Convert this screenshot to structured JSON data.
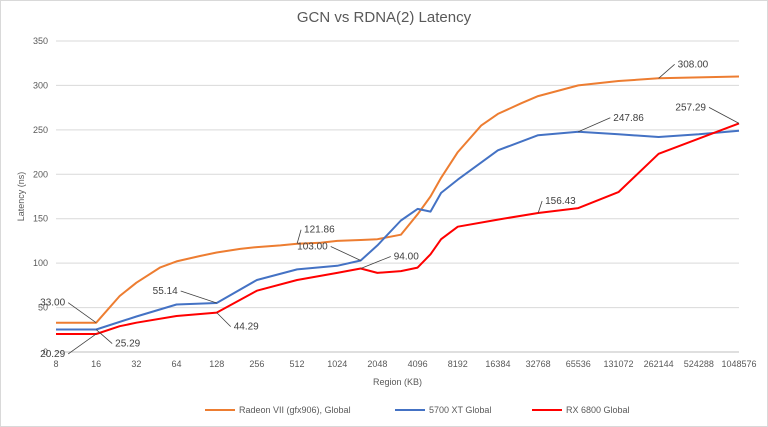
{
  "chart_data": {
    "type": "line",
    "title": "GCN vs RDNA(2) Latency",
    "xlabel": "Region (KB)",
    "ylabel": "Latency (ns)",
    "ylim": [
      0,
      350
    ],
    "yticks": [
      0,
      50,
      100,
      150,
      200,
      250,
      300,
      350
    ],
    "xticks": [
      "8",
      "16",
      "32",
      "64",
      "128",
      "256",
      "512",
      "1024",
      "2048",
      "4096",
      "8192",
      "16384",
      "32768",
      "65536",
      "131072",
      "262144",
      "524288",
      "1048576"
    ],
    "x_scale": "log2",
    "grid": "horizontal",
    "legend_position": "bottom",
    "series": [
      {
        "name": "Radeon VII (gfx906), Global",
        "color": "#ED7D31",
        "x": [
          8,
          12,
          16,
          24,
          32,
          48,
          64,
          96,
          128,
          192,
          256,
          384,
          512,
          768,
          1024,
          1536,
          2048,
          3072,
          4096,
          5120,
          6144,
          8192,
          12288,
          16384,
          24576,
          32768,
          65536,
          131072,
          262144,
          524288,
          1048576
        ],
        "y": [
          33,
          33,
          33,
          63,
          78,
          95,
          102,
          108,
          112,
          116,
          118,
          120,
          121.86,
          123,
          125,
          126,
          127,
          132,
          155,
          175,
          196,
          225,
          255,
          268,
          280,
          288,
          300,
          305,
          308,
          309,
          310
        ]
      },
      {
        "name": "5700 XT Global",
        "color": "#4472C4",
        "x": [
          8,
          12,
          16,
          32,
          64,
          128,
          256,
          512,
          1024,
          1536,
          2048,
          3072,
          4096,
          5120,
          6144,
          8192,
          16384,
          32768,
          65536,
          131072,
          262144,
          524288,
          1048576
        ],
        "y": [
          25.29,
          25.29,
          25.29,
          40,
          53.5,
          55.14,
          81,
          93,
          97,
          103,
          120,
          148,
          161,
          158,
          179,
          194,
          227,
          244,
          247.86,
          245,
          242,
          245,
          249
        ]
      },
      {
        "name": "RX 6800 Global",
        "color": "#FF0000",
        "x": [
          8,
          12,
          16,
          24,
          32,
          64,
          128,
          256,
          512,
          1024,
          1536,
          2048,
          3072,
          4096,
          5120,
          6144,
          8192,
          16384,
          32768,
          65536,
          131072,
          262144,
          1048576
        ],
        "y": [
          20.29,
          20.29,
          20.29,
          29,
          33,
          40.5,
          44.29,
          69,
          81,
          89,
          94,
          89,
          91,
          95,
          110,
          127,
          141,
          149,
          156.43,
          162,
          180,
          223,
          257.29
        ]
      }
    ],
    "annotations": [
      {
        "text": "33.00",
        "series": 0,
        "x": 16,
        "y": 33
      },
      {
        "text": "121.86",
        "series": 0,
        "x": 512,
        "y": 121.86
      },
      {
        "text": "308.00",
        "series": 0,
        "x": 262144,
        "y": 308
      },
      {
        "text": "25.29",
        "series": 1,
        "x": 16,
        "y": 25.29
      },
      {
        "text": "55.14",
        "series": 1,
        "x": 128,
        "y": 55.14
      },
      {
        "text": "103.00",
        "series": 1,
        "x": 1536,
        "y": 103
      },
      {
        "text": "247.86",
        "series": 1,
        "x": 65536,
        "y": 247.86
      },
      {
        "text": "20.29",
        "series": 2,
        "x": 16,
        "y": 20.29
      },
      {
        "text": "44.29",
        "series": 2,
        "x": 128,
        "y": 44.29
      },
      {
        "text": "94.00",
        "series": 2,
        "x": 1536,
        "y": 94
      },
      {
        "text": "156.43",
        "series": 2,
        "x": 32768,
        "y": 156.43
      },
      {
        "text": "257.29",
        "series": 2,
        "x": 1048576,
        "y": 257.29
      }
    ]
  }
}
